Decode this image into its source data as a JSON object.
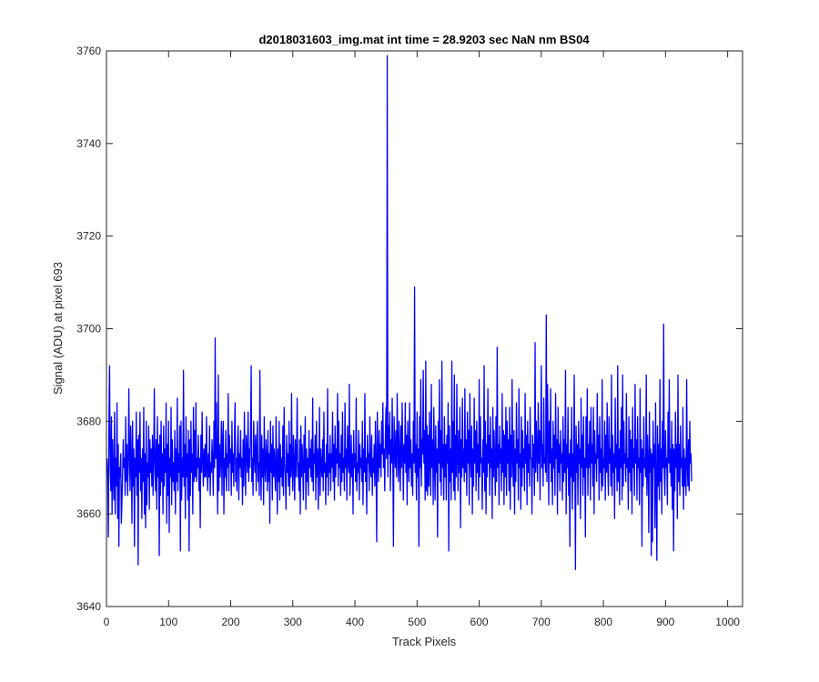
{
  "chart_data": {
    "type": "line",
    "title": "d2018031603_img.mat int time = 28.9203 sec  NaN nm BS04",
    "xlabel": "Track Pixels",
    "ylabel": "Signal (ADU) at pixel 693",
    "xlim": [
      0,
      1024
    ],
    "ylim": [
      3640,
      3760
    ],
    "xticks": [
      0,
      100,
      200,
      300,
      400,
      500,
      600,
      700,
      800,
      900,
      1000
    ],
    "yticks": [
      3640,
      3660,
      3680,
      3700,
      3720,
      3740,
      3760
    ],
    "grid": false,
    "line_color": "#0000ff",
    "series": [
      {
        "x_start": 1,
        "x_step": 1,
        "values": [
          3672,
          3668,
          3655,
          3680,
          3692,
          3670,
          3665,
          3681,
          3660,
          3676,
          3668,
          3663,
          3682,
          3660,
          3672,
          3666,
          3684,
          3659,
          3675,
          3653,
          3670,
          3668,
          3673,
          3658,
          3663,
          3669,
          3676,
          3670,
          3672,
          3664,
          3681,
          3667,
          3675,
          3664,
          3670,
          3687,
          3673,
          3665,
          3679,
          3672,
          3658,
          3680,
          3666,
          3674,
          3653,
          3672,
          3668,
          3682,
          3664,
          3676,
          3649,
          3677,
          3669,
          3682,
          3665,
          3672,
          3659,
          3674,
          3667,
          3683,
          3660,
          3673,
          3657,
          3680,
          3662,
          3671,
          3668,
          3679,
          3661,
          3676,
          3669,
          3674,
          3666,
          3677,
          3664,
          3672,
          3687,
          3670,
          3665,
          3676,
          3661,
          3681,
          3668,
          3675,
          3651,
          3677,
          3664,
          3680,
          3667,
          3673,
          3660,
          3679,
          3666,
          3674,
          3669,
          3684,
          3658,
          3675,
          3664,
          3680,
          3656,
          3672,
          3668,
          3683,
          3662,
          3676,
          3667,
          3671,
          3665,
          3678,
          3660,
          3674,
          3667,
          3685,
          3665,
          3673,
          3669,
          3679,
          3652,
          3680,
          3663,
          3672,
          3668,
          3691,
          3666,
          3675,
          3659,
          3681,
          3668,
          3673,
          3663,
          3678,
          3652,
          3676,
          3664,
          3680,
          3669,
          3673,
          3660,
          3683,
          3667,
          3678,
          3668,
          3684,
          3667,
          3672,
          3670,
          3677,
          3665,
          3672,
          3657,
          3677,
          3669,
          3682,
          3671,
          3666,
          3674,
          3668,
          3675,
          3668,
          3681,
          3670,
          3665,
          3673,
          3668,
          3679,
          3664,
          3671,
          3669,
          3676,
          3671,
          3664,
          3680,
          3670,
          3698,
          3672,
          3684,
          3670,
          3660,
          3690,
          3665,
          3675,
          3668,
          3672,
          3680,
          3664,
          3676,
          3680,
          3660,
          3672,
          3668,
          3678,
          3665,
          3673,
          3670,
          3686,
          3665,
          3677,
          3671,
          3674,
          3664,
          3680,
          3669,
          3673,
          3666,
          3676,
          3684,
          3667,
          3672,
          3665,
          3675,
          3679,
          3663,
          3673,
          3670,
          3678,
          3668,
          3672,
          3662,
          3676,
          3666,
          3682,
          3672,
          3664,
          3677,
          3673,
          3669,
          3682,
          3667,
          3674,
          3670,
          3678,
          3692,
          3667,
          3672,
          3664,
          3680,
          3673,
          3669,
          3677,
          3665,
          3674,
          3680,
          3667,
          3671,
          3664,
          3691,
          3672,
          3663,
          3677,
          3668,
          3674,
          3662,
          3681,
          3670,
          3667,
          3676,
          3672,
          3665,
          3678,
          3667,
          3673,
          3658,
          3680,
          3669,
          3675,
          3663,
          3679,
          3668,
          3674,
          3669,
          3665,
          3681,
          3671,
          3660,
          3674,
          3667,
          3680,
          3663,
          3675,
          3668,
          3672,
          3666,
          3679,
          3664,
          3683,
          3671,
          3668,
          3661,
          3677,
          3669,
          3673,
          3666,
          3680,
          3664,
          3675,
          3668,
          3686,
          3670,
          3665,
          3677,
          3671,
          3663,
          3676,
          3668,
          3673,
          3685,
          3668,
          3671,
          3665,
          3676,
          3660,
          3679,
          3668,
          3675,
          3670,
          3663,
          3677,
          3669,
          3681,
          3661,
          3674,
          3667,
          3672,
          3664,
          3678,
          3670,
          3674,
          3668,
          3676,
          3667,
          3685,
          3665,
          3673,
          3671,
          3677,
          3663,
          3680,
          3668,
          3674,
          3661,
          3672,
          3683,
          3664,
          3674,
          3670,
          3668,
          3676,
          3665,
          3682,
          3669,
          3671,
          3662,
          3675,
          3668,
          3687,
          3664,
          3673,
          3669,
          3677,
          3665,
          3673,
          3670,
          3682,
          3667,
          3675,
          3663,
          3679,
          3668,
          3674,
          3671,
          3686,
          3666,
          3680,
          3670,
          3673,
          3664,
          3677,
          3667,
          3682,
          3669,
          3672,
          3665,
          3684,
          3670,
          3674,
          3663,
          3679,
          3672,
          3669,
          3688,
          3664,
          3670,
          3677,
          3668,
          3673,
          3660,
          3678,
          3670,
          3673,
          3667,
          3685,
          3665,
          3671,
          3669,
          3678,
          3663,
          3675,
          3670,
          3672,
          3667,
          3680,
          3662,
          3674,
          3669,
          3686,
          3667,
          3672,
          3660,
          3677,
          3671,
          3673,
          3665,
          3681,
          3670,
          3668,
          3677,
          3664,
          3672,
          3669,
          3675,
          3666,
          3680,
          3671,
          3654,
          3682,
          3672,
          3667,
          3678,
          3670,
          3675,
          3668,
          3680,
          3673,
          3684,
          3670,
          3674,
          3665,
          3677,
          3683,
          3672,
          3759,
          3668,
          3679,
          3673,
          3682,
          3665,
          3676,
          3671,
          3685,
          3672,
          3653,
          3681,
          3674,
          3670,
          3678,
          3668,
          3686,
          3674,
          3667,
          3680,
          3672,
          3665,
          3679,
          3670,
          3684,
          3673,
          3663,
          3675,
          3671,
          3684,
          3669,
          3677,
          3662,
          3680,
          3672,
          3667,
          3684,
          3670,
          3676,
          3666,
          3673,
          3664,
          3680,
          3671,
          3709,
          3669,
          3675,
          3663,
          3682,
          3668,
          3674,
          3653,
          3681,
          3670,
          3689,
          3666,
          3676,
          3673,
          3691,
          3671,
          3678,
          3663,
          3693,
          3665,
          3679,
          3664,
          3677,
          3666,
          3682,
          3672,
          3664,
          3688,
          3670,
          3676,
          3662,
          3683,
          3672,
          3663,
          3679,
          3669,
          3674,
          3655,
          3680,
          3671,
          3689,
          3667,
          3678,
          3664,
          3693,
          3670,
          3675,
          3663,
          3681,
          3668,
          3675,
          3663,
          3677,
          3671,
          3684,
          3652,
          3679,
          3667,
          3674,
          3663,
          3693,
          3669,
          3680,
          3665,
          3690,
          3663,
          3677,
          3668,
          3688,
          3672,
          3665,
          3678,
          3669,
          3683,
          3657,
          3676,
          3668,
          3685,
          3670,
          3674,
          3667,
          3687,
          3669,
          3676,
          3664,
          3682,
          3671,
          3678,
          3662,
          3686,
          3673,
          3668,
          3679,
          3660,
          3674,
          3666,
          3685,
          3671,
          3678,
          3665,
          3680,
          3669,
          3675,
          3663,
          3689,
          3668,
          3681,
          3671,
          3672,
          3661,
          3676,
          3669,
          3692,
          3665,
          3680,
          3660,
          3675,
          3668,
          3687,
          3671,
          3677,
          3664,
          3681,
          3670,
          3674,
          3659,
          3683,
          3668,
          3678,
          3671,
          3664,
          3681,
          3667,
          3696,
          3670,
          3675,
          3662,
          3679,
          3671,
          3674,
          3665,
          3686,
          3669,
          3678,
          3662,
          3677,
          3668,
          3683,
          3664,
          3680,
          3671,
          3676,
          3665,
          3683,
          3661,
          3677,
          3668,
          3689,
          3672,
          3666,
          3678,
          3660,
          3674,
          3667,
          3684,
          3671,
          3676,
          3663,
          3687,
          3670,
          3673,
          3661,
          3681,
          3666,
          3678,
          3670,
          3674,
          3665,
          3686,
          3671,
          3677,
          3662,
          3680,
          3669,
          3675,
          3666,
          3683,
          3672,
          3672,
          3660,
          3677,
          3670,
          3675,
          3664,
          3697,
          3669,
          3680,
          3673,
          3667,
          3684,
          3671,
          3678,
          3663,
          3676,
          3692,
          3670,
          3675,
          3666,
          3685,
          3671,
          3672,
          3669,
          3703,
          3667,
          3688,
          3677,
          3662,
          3680,
          3671,
          3687,
          3667,
          3674,
          3662,
          3680,
          3670,
          3677,
          3664,
          3686,
          3672,
          3676,
          3660,
          3683,
          3669,
          3675,
          3665,
          3678,
          3671,
          3673,
          3663,
          3681,
          3667,
          3676,
          3669,
          3691,
          3660,
          3675,
          3670,
          3683,
          3664,
          3673,
          3653,
          3676,
          3668,
          3683,
          3661,
          3673,
          3667,
          3690,
          3671,
          3648,
          3679,
          3669,
          3675,
          3662,
          3680,
          3671,
          3674,
          3659,
          3685,
          3670,
          3677,
          3664,
          3681,
          3668,
          3672,
          3655,
          3681,
          3670,
          3687,
          3664,
          3675,
          3670,
          3680,
          3663,
          3683,
          3671,
          3675,
          3666,
          3683,
          3660,
          3678,
          3671,
          3673,
          3667,
          3686,
          3672,
          3677,
          3663,
          3681,
          3669,
          3674,
          3665,
          3689,
          3666,
          3672,
          3670,
          3680,
          3663,
          3677,
          3669,
          3684,
          3670,
          3664,
          3681,
          3671,
          3674,
          3666,
          3690,
          3664,
          3677,
          3669,
          3673,
          3659,
          3685,
          3670,
          3675,
          3665,
          3692,
          3667,
          3674,
          3662,
          3678,
          3670,
          3683,
          3663,
          3690,
          3666,
          3680,
          3671,
          3673,
          3667,
          3686,
          3670,
          3672,
          3661,
          3681,
          3669,
          3678,
          3665,
          3676,
          3660,
          3683,
          3670,
          3674,
          3664,
          3688,
          3671,
          3676,
          3663,
          3681,
          3670,
          3672,
          3662,
          3687,
          3669,
          3676,
          3653,
          3674,
          3666,
          3681,
          3670,
          3672,
          3668,
          3690,
          3664,
          3677,
          3671,
          3656,
          3682,
          3669,
          3674,
          3651,
          3673,
          3654,
          3680,
          3670,
          3675,
          3657,
          3684,
          3666,
          3650,
          3679,
          3666,
          3675,
          3663,
          3689,
          3667,
          3674,
          3660,
          3680,
          3670,
          3701,
          3669,
          3664,
          3678,
          3670,
          3672,
          3662,
          3682,
          3671,
          3689,
          3669,
          3674,
          3666,
          3680,
          3661,
          3675,
          3652,
          3674,
          3665,
          3682,
          3670,
          3675,
          3659,
          3690,
          3667,
          3675,
          3664,
          3679,
          3670,
          3672,
          3666,
          3683,
          3661,
          3674,
          3666,
          3672,
          3664,
          3689,
          3671,
          3666,
          3676,
          3665,
          3680,
          3671,
          3673,
          3667
        ]
      }
    ]
  }
}
